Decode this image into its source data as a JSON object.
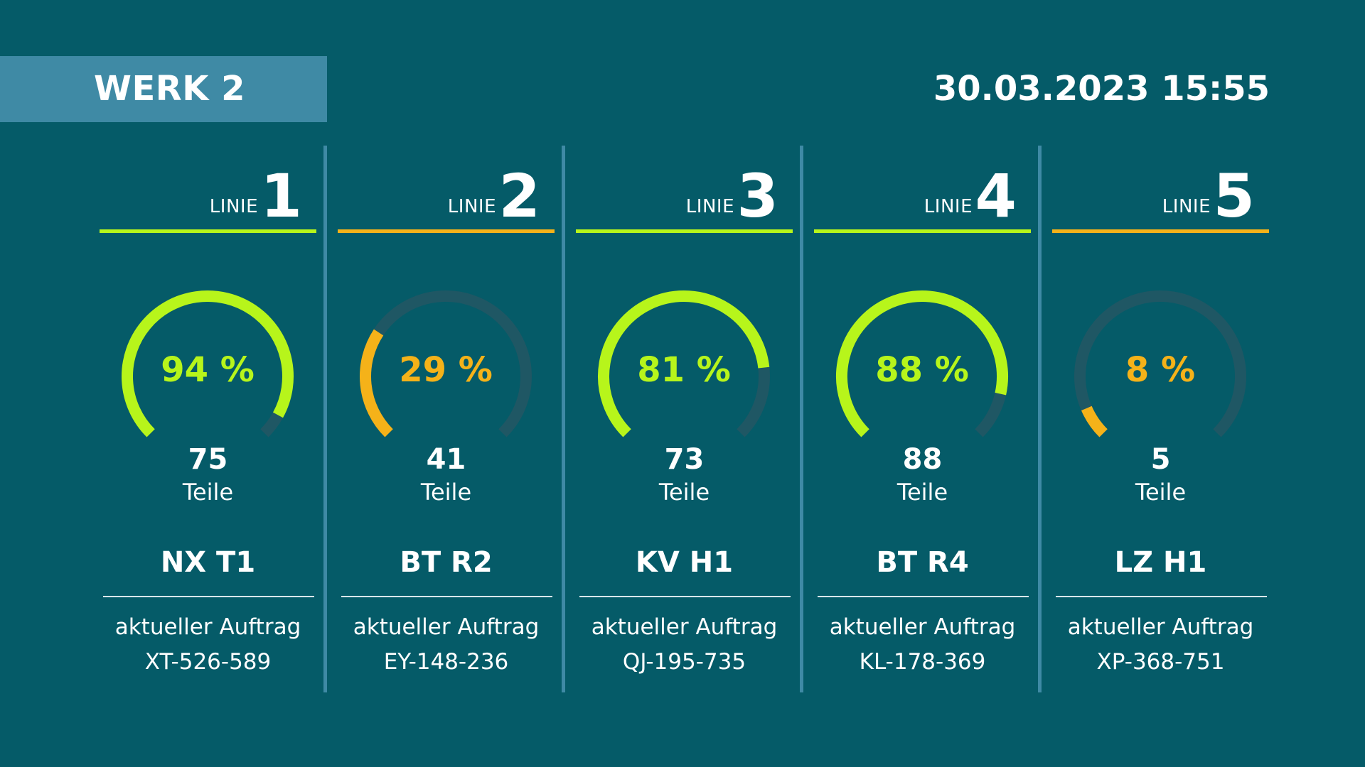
{
  "header": {
    "plant_title": "WERK 2",
    "datetime": "30.03.2023 15:55"
  },
  "colors": {
    "background": "#055b68",
    "banner": "#3f8aa5",
    "divider": "#3f8aa5",
    "good": "#b7f51b",
    "warning": "#f5b219",
    "track": "#1f5764",
    "text": "#ffffff"
  },
  "lines": [
    {
      "label": "LINIE",
      "number": "1",
      "status": "good",
      "progress_percent": 94,
      "percent_text": "94 %",
      "parts_count": "75",
      "parts_unit": "Teile",
      "product_code": "NX T1",
      "order_label": "aktueller Auftrag",
      "order_id": "XT-526-589"
    },
    {
      "label": "LINIE",
      "number": "2",
      "status": "warning",
      "progress_percent": 29,
      "percent_text": "29 %",
      "parts_count": "41",
      "parts_unit": "Teile",
      "product_code": "BT R2",
      "order_label": "aktueller Auftrag",
      "order_id": "EY-148-236"
    },
    {
      "label": "LINIE",
      "number": "3",
      "status": "good",
      "progress_percent": 81,
      "percent_text": "81 %",
      "parts_count": "73",
      "parts_unit": "Teile",
      "product_code": "KV H1",
      "order_label": "aktueller Auftrag",
      "order_id": "QJ-195-735"
    },
    {
      "label": "LINIE",
      "number": "4",
      "status": "good",
      "progress_percent": 88,
      "percent_text": "88 %",
      "parts_count": "88",
      "parts_unit": "Teile",
      "product_code": "BT R4",
      "order_label": "aktueller Auftrag",
      "order_id": "KL-178-369"
    },
    {
      "label": "LINIE",
      "number": "5",
      "status": "warning",
      "progress_percent": 8,
      "percent_text": "8 %",
      "parts_count": "5",
      "parts_unit": "Teile",
      "product_code": "LZ H1",
      "order_label": "aktueller Auftrag",
      "order_id": "XP-368-751"
    }
  ]
}
